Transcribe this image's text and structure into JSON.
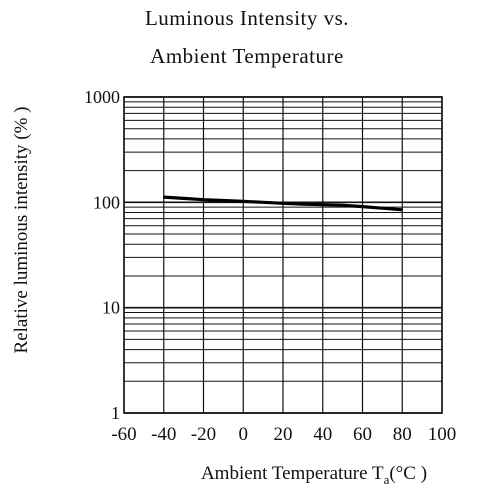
{
  "chart_data": {
    "type": "line",
    "title": "Luminous Intensity vs.",
    "subtitle": "Ambient Temperature",
    "xlabel": "Ambient Temperature T",
    "xlabel_sub": "a",
    "xlabel_unit": "(°C )",
    "ylabel": "Relative luminous intensity (% )",
    "xlim": [
      -60,
      100
    ],
    "ylim": [
      1,
      1000
    ],
    "y_scale": "log",
    "grid": true,
    "x_ticks": [
      "-60",
      "-40",
      "-20",
      "0",
      "20",
      "40",
      "60",
      "80",
      "100"
    ],
    "y_ticks": [
      "1",
      "10",
      "100",
      "1000"
    ],
    "series": [
      {
        "x": [
          -40,
          -30,
          -20,
          -10,
          0,
          10,
          20,
          30,
          40,
          50,
          60,
          70,
          80
        ],
        "values": [
          112,
          109,
          106,
          104,
          102,
          100,
          98,
          96,
          95,
          94,
          91,
          88,
          85
        ]
      }
    ]
  }
}
